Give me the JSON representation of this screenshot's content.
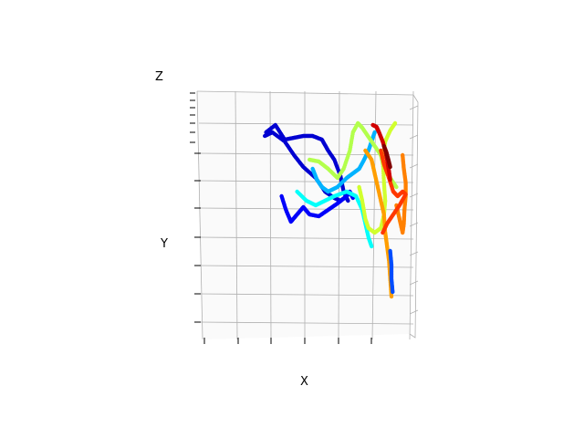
{
  "chart_data": {
    "type": "scatter",
    "projection": "3d",
    "xlabel": "X",
    "ylabel": "Y",
    "zlabel": "Z",
    "grid": true,
    "title": "",
    "colormap": "jet",
    "colors": {
      "grid": "#b0b0b0",
      "pane": "#f2f2f2",
      "tick": "#000000",
      "dark_blue": "#0022dd",
      "cyan": "#22ccee",
      "green": "#88ff66",
      "yellow": "#ffdd00",
      "orange": "#ff8800",
      "red": "#ee2200",
      "dark_red": "#880000"
    },
    "series": [
      {
        "color_value": 0.08,
        "points": [
          [
            -1.3,
            0.7
          ],
          [
            -1.15,
            0.78
          ],
          [
            -1.0,
            0.62
          ],
          [
            -0.85,
            0.64
          ],
          [
            -0.7,
            0.66
          ],
          [
            -0.55,
            0.66
          ],
          [
            -0.4,
            0.62
          ],
          [
            -0.3,
            0.5
          ],
          [
            -0.2,
            0.4
          ],
          [
            -0.1,
            0.22
          ],
          [
            -0.05,
            0.05
          ],
          [
            0.02,
            -0.05
          ],
          [
            -0.05,
            0.05
          ],
          [
            0.0,
            0.0
          ],
          [
            -0.1,
            -0.05
          ],
          [
            -0.2,
            -0.02
          ],
          [
            -0.35,
            0.05
          ],
          [
            -0.5,
            0.2
          ],
          [
            -0.7,
            0.32
          ],
          [
            -0.85,
            0.45
          ],
          [
            -1.0,
            0.6
          ],
          [
            -1.2,
            0.7
          ],
          [
            -1.32,
            0.66
          ]
        ]
      },
      {
        "color_value": 0.12,
        "points": [
          [
            -1.05,
            0.0
          ],
          [
            -0.98,
            -0.15
          ],
          [
            -0.9,
            -0.28
          ],
          [
            -0.8,
            -0.2
          ],
          [
            -0.7,
            -0.12
          ],
          [
            -0.6,
            -0.2
          ],
          [
            -0.45,
            -0.22
          ],
          [
            -0.3,
            -0.15
          ],
          [
            -0.15,
            -0.08
          ],
          [
            0.0,
            0.0
          ],
          [
            0.05,
            0.05
          ],
          [
            0.1,
            -0.02
          ]
        ]
      },
      {
        "color_value": 0.3,
        "points": [
          [
            -0.55,
            0.3
          ],
          [
            -0.48,
            0.18
          ],
          [
            -0.4,
            0.1
          ],
          [
            -0.3,
            0.05
          ],
          [
            -0.15,
            0.1
          ],
          [
            0.0,
            0.2
          ],
          [
            0.1,
            0.25
          ],
          [
            0.2,
            0.3
          ],
          [
            0.28,
            0.4
          ],
          [
            0.35,
            0.5
          ],
          [
            0.4,
            0.6
          ],
          [
            0.45,
            0.7
          ]
        ]
      },
      {
        "color_value": 0.38,
        "points": [
          [
            -0.8,
            0.05
          ],
          [
            -0.65,
            -0.05
          ],
          [
            -0.5,
            -0.1
          ],
          [
            -0.35,
            -0.05
          ],
          [
            -0.2,
            0.0
          ],
          [
            0.0,
            0.05
          ],
          [
            0.15,
            0.0
          ],
          [
            0.25,
            -0.15
          ],
          [
            0.3,
            -0.3
          ],
          [
            0.35,
            -0.45
          ],
          [
            0.4,
            -0.55
          ]
        ]
      },
      {
        "color_value": 0.55,
        "points": [
          [
            -0.6,
            0.4
          ],
          [
            -0.45,
            0.38
          ],
          [
            -0.3,
            0.3
          ],
          [
            -0.15,
            0.2
          ],
          [
            -0.05,
            0.3
          ],
          [
            0.05,
            0.5
          ],
          [
            0.1,
            0.7
          ],
          [
            0.18,
            0.8
          ],
          [
            0.25,
            0.75
          ],
          [
            0.35,
            0.65
          ],
          [
            0.45,
            0.55
          ],
          [
            0.55,
            0.45
          ],
          [
            0.6,
            0.3
          ],
          [
            0.7,
            0.2
          ],
          [
            0.8,
            0.1
          ]
        ]
      },
      {
        "color_value": 0.58,
        "points": [
          [
            0.2,
            0.1
          ],
          [
            0.25,
            -0.05
          ],
          [
            0.3,
            -0.25
          ],
          [
            0.35,
            -0.35
          ],
          [
            0.45,
            -0.4
          ],
          [
            0.55,
            -0.35
          ],
          [
            0.6,
            -0.2
          ],
          [
            0.62,
            -0.05
          ],
          [
            0.6,
            0.15
          ],
          [
            0.58,
            0.4
          ],
          [
            0.62,
            0.6
          ],
          [
            0.7,
            0.72
          ],
          [
            0.78,
            0.8
          ]
        ]
      },
      {
        "color_value": 0.72,
        "points": [
          [
            0.3,
            0.5
          ],
          [
            0.4,
            0.4
          ],
          [
            0.45,
            0.25
          ],
          [
            0.5,
            0.1
          ],
          [
            0.55,
            -0.05
          ],
          [
            0.6,
            -0.2
          ],
          [
            0.62,
            -0.4
          ],
          [
            0.65,
            -0.55
          ],
          [
            0.68,
            -0.7
          ],
          [
            0.7,
            -0.9
          ],
          [
            0.72,
            -1.1
          ]
        ]
      },
      {
        "color_value": 0.75,
        "points": [
          [
            0.9,
            0.45
          ],
          [
            0.92,
            0.3
          ],
          [
            0.95,
            0.15
          ],
          [
            0.95,
            0.0
          ],
          [
            0.93,
            -0.15
          ],
          [
            0.92,
            -0.3
          ],
          [
            0.9,
            -0.4
          ],
          [
            0.85,
            -0.25
          ],
          [
            0.8,
            -0.1
          ]
        ]
      },
      {
        "color_value": 0.82,
        "points": [
          [
            0.55,
            0.5
          ],
          [
            0.6,
            0.35
          ],
          [
            0.68,
            0.2
          ],
          [
            0.75,
            0.05
          ],
          [
            0.82,
            0.0
          ],
          [
            0.9,
            0.05
          ],
          [
            0.95,
            0.02
          ],
          [
            0.85,
            -0.1
          ],
          [
            0.75,
            -0.2
          ],
          [
            0.65,
            -0.3
          ],
          [
            0.58,
            -0.4
          ]
        ]
      },
      {
        "color_value": 0.92,
        "points": [
          [
            0.42,
            0.78
          ],
          [
            0.48,
            0.76
          ],
          [
            0.52,
            0.7
          ],
          [
            0.58,
            0.6
          ],
          [
            0.62,
            0.5
          ],
          [
            0.65,
            0.4
          ],
          [
            0.68,
            0.28
          ],
          [
            0.7,
            0.18
          ]
        ]
      },
      {
        "color_value": 1.0,
        "points": [
          [
            0.6,
            0.55
          ],
          [
            0.64,
            0.48
          ],
          [
            0.67,
            0.4
          ],
          [
            0.7,
            0.32
          ]
        ]
      },
      {
        "color_value": 0.2,
        "points": [
          [
            0.7,
            -0.6
          ],
          [
            0.72,
            -0.75
          ],
          [
            0.72,
            -0.9
          ],
          [
            0.74,
            -1.05
          ]
        ]
      }
    ],
    "axis_ticks": {
      "x": [
        "",
        "",
        "",
        "",
        "",
        ""
      ],
      "y": [
        "",
        "",
        "",
        "",
        "",
        "",
        "",
        "",
        ""
      ],
      "z": [
        "",
        "",
        "",
        "",
        "",
        ""
      ]
    }
  }
}
